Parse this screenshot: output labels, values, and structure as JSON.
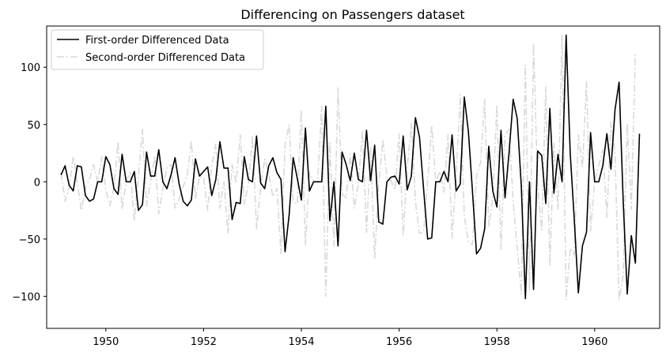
{
  "chart_data": {
    "type": "line",
    "title": "Differencing on Passengers dataset",
    "xlabel": "",
    "ylabel": "",
    "xlim": [
      1948.79,
      1961.33
    ],
    "ylim": [
      -128,
      136
    ],
    "x_ticks": [
      1950,
      1952,
      1954,
      1956,
      1958,
      1960
    ],
    "x_tick_labels": [
      "1950",
      "1952",
      "1954",
      "1956",
      "1958",
      "1960"
    ],
    "y_ticks": [
      -100,
      -50,
      0,
      50,
      100
    ],
    "y_tick_labels": [
      "−100",
      "−50",
      "0",
      "50",
      "100"
    ],
    "grid": false,
    "legend": {
      "placement": "top-left"
    },
    "x_start": "1949-02",
    "x_step": "1 month",
    "series": [
      {
        "name": "First-order Differenced Data",
        "color": "#000000",
        "style": "solid",
        "values": [
          6,
          14,
          -3,
          -8,
          14,
          13,
          -12,
          -17,
          -15,
          0,
          0,
          22,
          15,
          -6,
          -11,
          24,
          0,
          0,
          9,
          -25,
          -20,
          26,
          5,
          5,
          28,
          0,
          -6,
          6,
          21,
          -2,
          -17,
          -21,
          -16,
          20,
          5,
          9,
          13,
          -12,
          2,
          35,
          12,
          12,
          -33,
          -18,
          -19,
          22,
          2,
          0,
          40,
          -1,
          -6,
          14,
          21,
          8,
          2,
          -61,
          -29,
          21,
          3,
          -16,
          47,
          -8,
          0,
          0,
          0,
          66,
          -34,
          0,
          -56,
          26,
          15,
          1,
          25,
          2,
          0,
          45,
          1,
          32,
          -35,
          -37,
          0,
          4,
          5,
          -2,
          40,
          -7,
          5,
          56,
          39,
          -6,
          -50,
          -49,
          0,
          0,
          9,
          0,
          41,
          -8,
          -2,
          74,
          44,
          -8,
          -63,
          -58,
          -41,
          31,
          -8,
          -22,
          45,
          -14,
          26,
          72,
          55,
          -4,
          -102,
          0,
          -94,
          27,
          23,
          -19,
          64,
          -10,
          24,
          0,
          128,
          25,
          -33,
          -97,
          -56,
          -44,
          43,
          0,
          0,
          14,
          42,
          11,
          63,
          87,
          -16,
          -98,
          -47,
          -71,
          42
        ]
      },
      {
        "name": "Second-order Differenced Data",
        "color": "#d9d9d9",
        "style": "dashdot",
        "values": [
          8,
          -17,
          -5,
          22,
          -1,
          -25,
          -5,
          2,
          15,
          0,
          22,
          -7,
          -21,
          -5,
          35,
          -24,
          0,
          9,
          -34,
          5,
          46,
          -21,
          0,
          23,
          -28,
          -6,
          12,
          15,
          -23,
          -15,
          -4,
          5,
          36,
          -15,
          4,
          4,
          -25,
          14,
          33,
          -23,
          0,
          -45,
          15,
          -1,
          41,
          -20,
          -2,
          40,
          -41,
          -5,
          20,
          7,
          -13,
          -6,
          -63,
          32,
          50,
          -18,
          -19,
          63,
          -55,
          8,
          0,
          0,
          66,
          -100,
          34,
          -56,
          82,
          -11,
          -14,
          24,
          -23,
          -2,
          45,
          -44,
          31,
          -67,
          -2,
          37,
          4,
          1,
          -7,
          42,
          -47,
          12,
          51,
          -17,
          -45,
          -44,
          1,
          49,
          0,
          9,
          -9,
          41,
          -49,
          6,
          76,
          -30,
          -52,
          -55,
          5,
          17,
          72,
          -39,
          -14,
          67,
          -59,
          40,
          46,
          -17,
          -59,
          -98,
          102,
          -94,
          121,
          -4,
          -42,
          83,
          -74,
          34,
          -24,
          128,
          -103,
          -58,
          -64,
          41,
          12,
          87,
          -43,
          0,
          14,
          28,
          -31,
          52,
          24,
          -103,
          -82,
          51,
          -24,
          113
        ]
      }
    ]
  }
}
